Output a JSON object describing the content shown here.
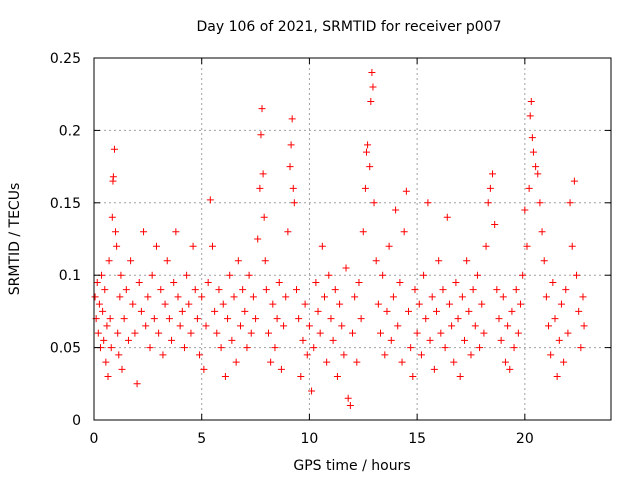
{
  "chart_data": {
    "type": "scatter",
    "title": "Day 106 of 2021, SRMTID for receiver p007",
    "xlabel": "GPS time / hours",
    "ylabel": "SRMTID / TECUs",
    "xlim": [
      0,
      24
    ],
    "ylim": [
      0,
      0.25
    ],
    "x_ticks": [
      0,
      5,
      10,
      15,
      20
    ],
    "x_tick_labels": [
      "0",
      "5",
      "10",
      "15",
      "20"
    ],
    "y_ticks": [
      0,
      0.05,
      0.1,
      0.15,
      0.2,
      0.25
    ],
    "y_tick_labels": [
      "0",
      "0.05",
      "0.1",
      "0.15",
      "0.2",
      "0.25"
    ],
    "grid": true,
    "marker": "+",
    "marker_color": "#ff0000",
    "series": [
      {
        "name": "p007",
        "points": [
          [
            0.05,
            0.085
          ],
          [
            0.1,
            0.07
          ],
          [
            0.15,
            0.095
          ],
          [
            0.2,
            0.06
          ],
          [
            0.25,
            0.08
          ],
          [
            0.3,
            0.05
          ],
          [
            0.35,
            0.1
          ],
          [
            0.4,
            0.075
          ],
          [
            0.45,
            0.055
          ],
          [
            0.5,
            0.09
          ],
          [
            0.55,
            0.04
          ],
          [
            0.6,
            0.065
          ],
          [
            0.65,
            0.03
          ],
          [
            0.7,
            0.11
          ],
          [
            0.75,
            0.07
          ],
          [
            0.8,
            0.05
          ],
          [
            0.85,
            0.14
          ],
          [
            0.88,
            0.165
          ],
          [
            0.9,
            0.168
          ],
          [
            0.95,
            0.187
          ],
          [
            1.0,
            0.13
          ],
          [
            1.05,
            0.12
          ],
          [
            1.1,
            0.06
          ],
          [
            1.15,
            0.045
          ],
          [
            1.2,
            0.085
          ],
          [
            1.25,
            0.1
          ],
          [
            1.3,
            0.035
          ],
          [
            1.4,
            0.07
          ],
          [
            1.5,
            0.09
          ],
          [
            1.6,
            0.055
          ],
          [
            1.7,
            0.11
          ],
          [
            1.8,
            0.08
          ],
          [
            1.9,
            0.06
          ],
          [
            2.0,
            0.025
          ],
          [
            2.1,
            0.095
          ],
          [
            2.2,
            0.075
          ],
          [
            2.3,
            0.13
          ],
          [
            2.4,
            0.065
          ],
          [
            2.5,
            0.085
          ],
          [
            2.6,
            0.05
          ],
          [
            2.7,
            0.1
          ],
          [
            2.8,
            0.07
          ],
          [
            2.9,
            0.12
          ],
          [
            3.0,
            0.06
          ],
          [
            3.1,
            0.09
          ],
          [
            3.2,
            0.045
          ],
          [
            3.3,
            0.08
          ],
          [
            3.4,
            0.11
          ],
          [
            3.5,
            0.07
          ],
          [
            3.6,
            0.055
          ],
          [
            3.7,
            0.095
          ],
          [
            3.8,
            0.13
          ],
          [
            3.9,
            0.085
          ],
          [
            4.0,
            0.065
          ],
          [
            4.1,
            0.075
          ],
          [
            4.2,
            0.05
          ],
          [
            4.3,
            0.1
          ],
          [
            4.4,
            0.08
          ],
          [
            4.5,
            0.06
          ],
          [
            4.6,
            0.12
          ],
          [
            4.7,
            0.09
          ],
          [
            4.8,
            0.07
          ],
          [
            4.9,
            0.045
          ],
          [
            5.0,
            0.085
          ],
          [
            5.1,
            0.035
          ],
          [
            5.2,
            0.065
          ],
          [
            5.3,
            0.095
          ],
          [
            5.4,
            0.152
          ],
          [
            5.5,
            0.12
          ],
          [
            5.6,
            0.075
          ],
          [
            5.7,
            0.06
          ],
          [
            5.8,
            0.09
          ],
          [
            5.9,
            0.05
          ],
          [
            6.0,
            0.08
          ],
          [
            6.1,
            0.03
          ],
          [
            6.2,
            0.07
          ],
          [
            6.3,
            0.1
          ],
          [
            6.4,
            0.055
          ],
          [
            6.5,
            0.085
          ],
          [
            6.6,
            0.04
          ],
          [
            6.7,
            0.11
          ],
          [
            6.8,
            0.065
          ],
          [
            6.9,
            0.09
          ],
          [
            7.0,
            0.075
          ],
          [
            7.1,
            0.05
          ],
          [
            7.2,
            0.1
          ],
          [
            7.3,
            0.06
          ],
          [
            7.4,
            0.085
          ],
          [
            7.5,
            0.07
          ],
          [
            7.6,
            0.125
          ],
          [
            7.7,
            0.16
          ],
          [
            7.75,
            0.197
          ],
          [
            7.8,
            0.215
          ],
          [
            7.85,
            0.17
          ],
          [
            7.9,
            0.14
          ],
          [
            7.95,
            0.11
          ],
          [
            8.0,
            0.09
          ],
          [
            8.1,
            0.06
          ],
          [
            8.2,
            0.04
          ],
          [
            8.3,
            0.08
          ],
          [
            8.4,
            0.05
          ],
          [
            8.5,
            0.07
          ],
          [
            8.6,
            0.095
          ],
          [
            8.7,
            0.035
          ],
          [
            8.8,
            0.065
          ],
          [
            8.9,
            0.085
          ],
          [
            9.0,
            0.13
          ],
          [
            9.1,
            0.175
          ],
          [
            9.15,
            0.19
          ],
          [
            9.2,
            0.208
          ],
          [
            9.25,
            0.16
          ],
          [
            9.3,
            0.15
          ],
          [
            9.4,
            0.09
          ],
          [
            9.5,
            0.07
          ],
          [
            9.6,
            0.03
          ],
          [
            9.7,
            0.055
          ],
          [
            9.8,
            0.08
          ],
          [
            9.9,
            0.045
          ],
          [
            10.0,
            0.065
          ],
          [
            10.1,
            0.02
          ],
          [
            10.2,
            0.05
          ],
          [
            10.3,
            0.095
          ],
          [
            10.4,
            0.075
          ],
          [
            10.5,
            0.06
          ],
          [
            10.6,
            0.12
          ],
          [
            10.7,
            0.085
          ],
          [
            10.8,
            0.04
          ],
          [
            10.9,
            0.1
          ],
          [
            11.0,
            0.07
          ],
          [
            11.1,
            0.055
          ],
          [
            11.2,
            0.09
          ],
          [
            11.3,
            0.03
          ],
          [
            11.4,
            0.08
          ],
          [
            11.5,
            0.065
          ],
          [
            11.6,
            0.045
          ],
          [
            11.7,
            0.105
          ],
          [
            11.8,
            0.015
          ],
          [
            11.9,
            0.01
          ],
          [
            12.0,
            0.06
          ],
          [
            12.1,
            0.085
          ],
          [
            12.2,
            0.04
          ],
          [
            12.3,
            0.095
          ],
          [
            12.4,
            0.07
          ],
          [
            12.5,
            0.13
          ],
          [
            12.6,
            0.16
          ],
          [
            12.65,
            0.185
          ],
          [
            12.7,
            0.19
          ],
          [
            12.8,
            0.175
          ],
          [
            12.85,
            0.22
          ],
          [
            12.9,
            0.24
          ],
          [
            12.95,
            0.23
          ],
          [
            13.0,
            0.15
          ],
          [
            13.1,
            0.11
          ],
          [
            13.2,
            0.08
          ],
          [
            13.3,
            0.06
          ],
          [
            13.4,
            0.1
          ],
          [
            13.5,
            0.045
          ],
          [
            13.6,
            0.075
          ],
          [
            13.7,
            0.12
          ],
          [
            13.8,
            0.055
          ],
          [
            13.9,
            0.085
          ],
          [
            14.0,
            0.145
          ],
          [
            14.1,
            0.065
          ],
          [
            14.2,
            0.095
          ],
          [
            14.3,
            0.04
          ],
          [
            14.4,
            0.13
          ],
          [
            14.5,
            0.158
          ],
          [
            14.6,
            0.075
          ],
          [
            14.7,
            0.05
          ],
          [
            14.8,
            0.03
          ],
          [
            14.9,
            0.09
          ],
          [
            15.0,
            0.06
          ],
          [
            15.1,
            0.08
          ],
          [
            15.2,
            0.045
          ],
          [
            15.3,
            0.1
          ],
          [
            15.4,
            0.07
          ],
          [
            15.5,
            0.15
          ],
          [
            15.6,
            0.055
          ],
          [
            15.7,
            0.085
          ],
          [
            15.8,
            0.035
          ],
          [
            15.9,
            0.075
          ],
          [
            16.0,
            0.11
          ],
          [
            16.1,
            0.06
          ],
          [
            16.2,
            0.09
          ],
          [
            16.3,
            0.05
          ],
          [
            16.4,
            0.14
          ],
          [
            16.5,
            0.08
          ],
          [
            16.6,
            0.065
          ],
          [
            16.7,
            0.04
          ],
          [
            16.8,
            0.095
          ],
          [
            16.9,
            0.07
          ],
          [
            17.0,
            0.03
          ],
          [
            17.1,
            0.085
          ],
          [
            17.2,
            0.055
          ],
          [
            17.3,
            0.11
          ],
          [
            17.4,
            0.075
          ],
          [
            17.5,
            0.045
          ],
          [
            17.6,
            0.09
          ],
          [
            17.7,
            0.065
          ],
          [
            17.8,
            0.1
          ],
          [
            17.9,
            0.05
          ],
          [
            18.0,
            0.08
          ],
          [
            18.1,
            0.06
          ],
          [
            18.2,
            0.12
          ],
          [
            18.3,
            0.15
          ],
          [
            18.4,
            0.16
          ],
          [
            18.5,
            0.17
          ],
          [
            18.6,
            0.135
          ],
          [
            18.7,
            0.09
          ],
          [
            18.8,
            0.07
          ],
          [
            18.9,
            0.055
          ],
          [
            19.0,
            0.085
          ],
          [
            19.1,
            0.04
          ],
          [
            19.2,
            0.065
          ],
          [
            19.3,
            0.035
          ],
          [
            19.4,
            0.075
          ],
          [
            19.5,
            0.05
          ],
          [
            19.6,
            0.09
          ],
          [
            19.7,
            0.06
          ],
          [
            19.8,
            0.08
          ],
          [
            19.9,
            0.1
          ],
          [
            20.0,
            0.145
          ],
          [
            20.1,
            0.12
          ],
          [
            20.2,
            0.16
          ],
          [
            20.25,
            0.21
          ],
          [
            20.3,
            0.22
          ],
          [
            20.35,
            0.195
          ],
          [
            20.4,
            0.185
          ],
          [
            20.5,
            0.175
          ],
          [
            20.6,
            0.17
          ],
          [
            20.7,
            0.15
          ],
          [
            20.8,
            0.13
          ],
          [
            20.9,
            0.11
          ],
          [
            21.0,
            0.085
          ],
          [
            21.1,
            0.065
          ],
          [
            21.2,
            0.045
          ],
          [
            21.3,
            0.095
          ],
          [
            21.4,
            0.07
          ],
          [
            21.5,
            0.03
          ],
          [
            21.6,
            0.055
          ],
          [
            21.7,
            0.08
          ],
          [
            21.8,
            0.04
          ],
          [
            21.9,
            0.09
          ],
          [
            22.0,
            0.06
          ],
          [
            22.1,
            0.15
          ],
          [
            22.2,
            0.12
          ],
          [
            22.3,
            0.165
          ],
          [
            22.4,
            0.1
          ],
          [
            22.5,
            0.075
          ],
          [
            22.6,
            0.05
          ],
          [
            22.7,
            0.085
          ],
          [
            22.75,
            0.065
          ]
        ]
      }
    ]
  }
}
